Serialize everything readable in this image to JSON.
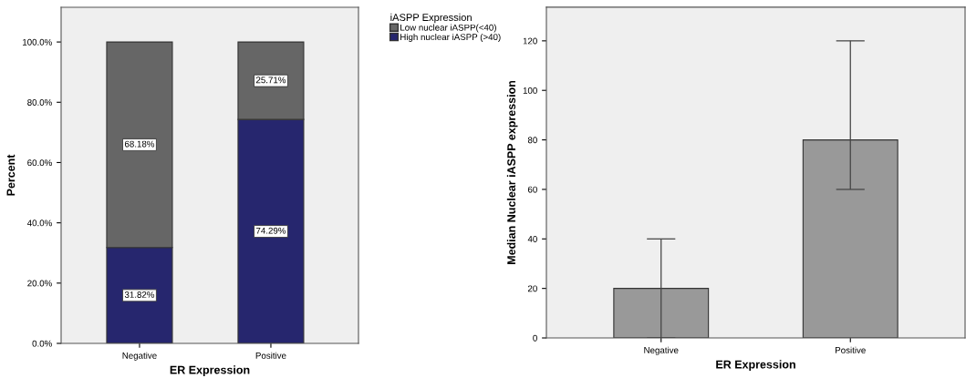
{
  "chart_data": [
    {
      "type": "bar",
      "stacked": true,
      "xlabel": "ER Expression",
      "ylabel": "Percent",
      "legend_title": "iASPP Expression",
      "legend": "top right",
      "grid": false,
      "categories": [
        "Negative",
        "Positive"
      ],
      "series": [
        {
          "name": "High nuclear iASPP (>40)",
          "color": "#26266e",
          "values": [
            31.82,
            74.29
          ],
          "value_labels": [
            "31.82%",
            "74.29%"
          ]
        },
        {
          "name": "Low nuclear iASPP(<40)",
          "color": "#666666",
          "values": [
            68.18,
            25.71
          ],
          "value_labels": [
            "68.18%",
            "25.71%"
          ]
        }
      ],
      "ylim": [
        0,
        111.5
      ],
      "yticks": [
        {
          "value": 0,
          "label": "0.0%"
        },
        {
          "value": 20,
          "label": "20.0%"
        },
        {
          "value": 40,
          "label": "40.0%"
        },
        {
          "value": 60,
          "label": "60.0%"
        },
        {
          "value": 80,
          "label": "80.0%"
        },
        {
          "value": 100,
          "label": "100.0%"
        }
      ]
    },
    {
      "type": "bar",
      "xlabel": "ER Expression",
      "ylabel": "Median Nuclear iASPP expression",
      "grid": false,
      "categories": [
        "Negative",
        "Positive"
      ],
      "values": [
        20,
        80
      ],
      "color": "#999999",
      "errors": [
        [
          0,
          40
        ],
        [
          60,
          120
        ]
      ],
      "ylim": [
        0,
        133.6
      ],
      "yticks": [
        0,
        20,
        40,
        60,
        80,
        100,
        120
      ]
    }
  ]
}
